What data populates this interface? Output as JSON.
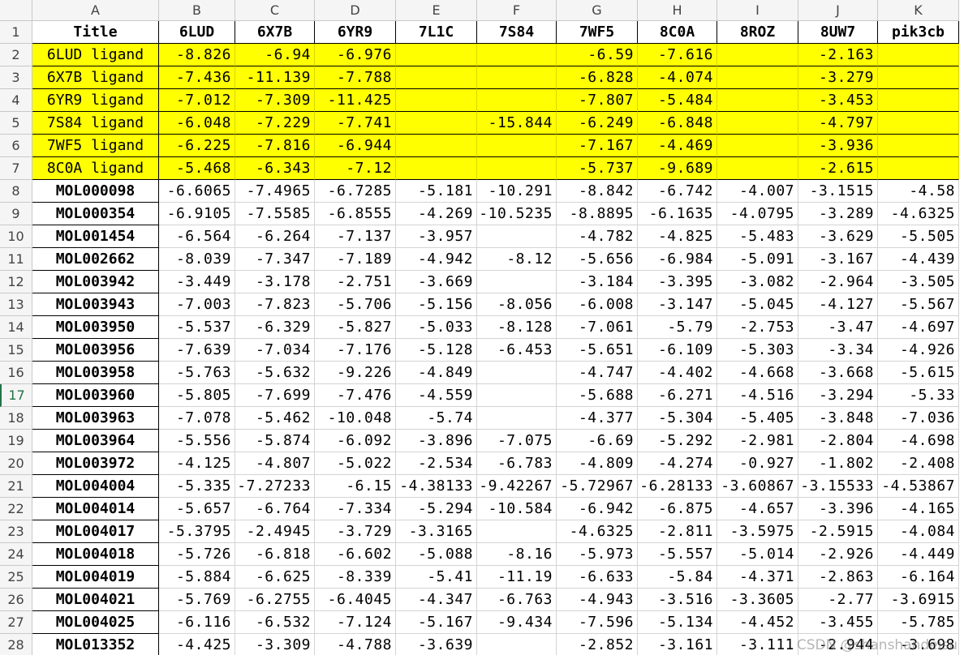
{
  "sheet": {
    "column_letters": [
      "A",
      "B",
      "C",
      "D",
      "E",
      "F",
      "G",
      "H",
      "I",
      "J",
      "K"
    ],
    "row_numbers": [
      "1",
      "2",
      "3",
      "4",
      "5",
      "6",
      "7",
      "8",
      "9",
      "10",
      "11",
      "12",
      "13",
      "14",
      "15",
      "16",
      "17",
      "18",
      "19",
      "20",
      "21",
      "22",
      "23",
      "24",
      "25",
      "26",
      "27",
      "28"
    ],
    "highlight_color": "#ffff00",
    "highlight_rows": [
      1,
      2,
      3,
      4,
      5,
      6
    ],
    "selected_row": 16,
    "rows": [
      [
        "Title",
        "6LUD",
        "6X7B",
        "6YR9",
        "7L1C",
        "7S84",
        "7WF5",
        "8C0A",
        "8ROZ",
        "8UW7",
        "pik3cb"
      ],
      [
        "6LUD ligand",
        "-8.826",
        "-6.94",
        "-6.976",
        null,
        null,
        "-6.59",
        "-7.616",
        null,
        "-2.163",
        null
      ],
      [
        "6X7B ligand",
        "-7.436",
        "-11.139",
        "-7.788",
        null,
        null,
        "-6.828",
        "-4.074",
        null,
        "-3.279",
        null
      ],
      [
        "6YR9 ligand",
        "-7.012",
        "-7.309",
        "-11.425",
        null,
        null,
        "-7.807",
        "-5.484",
        null,
        "-3.453",
        null
      ],
      [
        "7S84 ligand",
        "-6.048",
        "-7.229",
        "-7.741",
        null,
        "-15.844",
        "-6.249",
        "-6.848",
        null,
        "-4.797",
        null
      ],
      [
        "7WF5 ligand",
        "-6.225",
        "-7.816",
        "-6.944",
        null,
        null,
        "-7.167",
        "-4.469",
        null,
        "-3.936",
        null
      ],
      [
        "8C0A ligand",
        "-5.468",
        "-6.343",
        "-7.12",
        null,
        null,
        "-5.737",
        "-9.689",
        null,
        "-2.615",
        null
      ],
      [
        "MOL000098",
        "-6.6065",
        "-7.4965",
        "-6.7285",
        "-5.181",
        "-10.291",
        "-8.842",
        "-6.742",
        "-4.007",
        "-3.1515",
        "-4.58"
      ],
      [
        "MOL000354",
        "-6.9105",
        "-7.5585",
        "-6.8555",
        "-4.269",
        "-10.5235",
        "-8.8895",
        "-6.1635",
        "-4.0795",
        "-3.289",
        "-4.6325"
      ],
      [
        "MOL001454",
        "-6.564",
        "-6.264",
        "-7.137",
        "-3.957",
        null,
        "-4.782",
        "-4.825",
        "-5.483",
        "-3.629",
        "-5.505"
      ],
      [
        "MOL002662",
        "-8.039",
        "-7.347",
        "-7.189",
        "-4.942",
        "-8.12",
        "-5.656",
        "-6.984",
        "-5.091",
        "-3.167",
        "-4.439"
      ],
      [
        "MOL003942",
        "-3.449",
        "-3.178",
        "-2.751",
        "-3.669",
        null,
        "-3.184",
        "-3.395",
        "-3.082",
        "-2.964",
        "-3.505"
      ],
      [
        "MOL003943",
        "-7.003",
        "-7.823",
        "-5.706",
        "-5.156",
        "-8.056",
        "-6.008",
        "-3.147",
        "-5.045",
        "-4.127",
        "-5.567"
      ],
      [
        "MOL003950",
        "-5.537",
        "-6.329",
        "-5.827",
        "-5.033",
        "-8.128",
        "-7.061",
        "-5.79",
        "-2.753",
        "-3.47",
        "-4.697"
      ],
      [
        "MOL003956",
        "-7.639",
        "-7.034",
        "-7.176",
        "-5.128",
        "-6.453",
        "-5.651",
        "-6.109",
        "-5.303",
        "-3.34",
        "-4.926"
      ],
      [
        "MOL003958",
        "-5.763",
        "-5.632",
        "-9.226",
        "-4.849",
        null,
        "-4.747",
        "-4.402",
        "-4.668",
        "-3.668",
        "-5.615"
      ],
      [
        "MOL003960",
        "-5.805",
        "-7.699",
        "-7.476",
        "-4.559",
        null,
        "-5.688",
        "-6.271",
        "-4.516",
        "-3.294",
        "-5.33"
      ],
      [
        "MOL003963",
        "-7.078",
        "-5.462",
        "-10.048",
        "-5.74",
        null,
        "-4.377",
        "-5.304",
        "-5.405",
        "-3.848",
        "-7.036"
      ],
      [
        "MOL003964",
        "-5.556",
        "-5.874",
        "-6.092",
        "-3.896",
        "-7.075",
        "-6.69",
        "-5.292",
        "-2.981",
        "-2.804",
        "-4.698"
      ],
      [
        "MOL003972",
        "-4.125",
        "-4.807",
        "-5.022",
        "-2.534",
        "-6.783",
        "-4.809",
        "-4.274",
        "-0.927",
        "-1.802",
        "-2.408"
      ],
      [
        "MOL004004",
        "-5.335",
        "-7.27233",
        "-6.15",
        "-4.38133",
        "-9.42267",
        "-5.72967",
        "-6.28133",
        "-3.60867",
        "-3.15533",
        "-4.53867"
      ],
      [
        "MOL004014",
        "-5.657",
        "-6.764",
        "-7.334",
        "-5.294",
        "-10.584",
        "-6.942",
        "-6.875",
        "-4.657",
        "-3.396",
        "-4.165"
      ],
      [
        "MOL004017",
        "-5.3795",
        "-2.4945",
        "-3.729",
        "-3.3165",
        null,
        "-4.6325",
        "-2.811",
        "-3.5975",
        "-2.5915",
        "-4.084"
      ],
      [
        "MOL004018",
        "-5.726",
        "-6.818",
        "-6.602",
        "-5.088",
        "-8.16",
        "-5.973",
        "-5.557",
        "-5.014",
        "-2.926",
        "-4.449"
      ],
      [
        "MOL004019",
        "-5.884",
        "-6.625",
        "-8.339",
        "-5.41",
        "-11.19",
        "-6.633",
        "-5.84",
        "-4.371",
        "-2.863",
        "-6.164"
      ],
      [
        "MOL004021",
        "-5.769",
        "-6.2755",
        "-6.4045",
        "-4.347",
        "-6.763",
        "-4.943",
        "-3.516",
        "-3.3605",
        "-2.77",
        "-3.6915"
      ],
      [
        "MOL004025",
        "-6.116",
        "-6.532",
        "-7.124",
        "-5.167",
        "-9.434",
        "-7.596",
        "-5.134",
        "-4.452",
        "-3.455",
        "-5.785"
      ],
      [
        "MOL013352",
        "-4.425",
        "-3.309",
        "-4.788",
        "-3.639",
        null,
        "-2.852",
        "-3.161",
        "-3.111",
        "-2.944",
        "-3.698"
      ]
    ]
  },
  "watermark": "CSDN @shanshandeisu"
}
